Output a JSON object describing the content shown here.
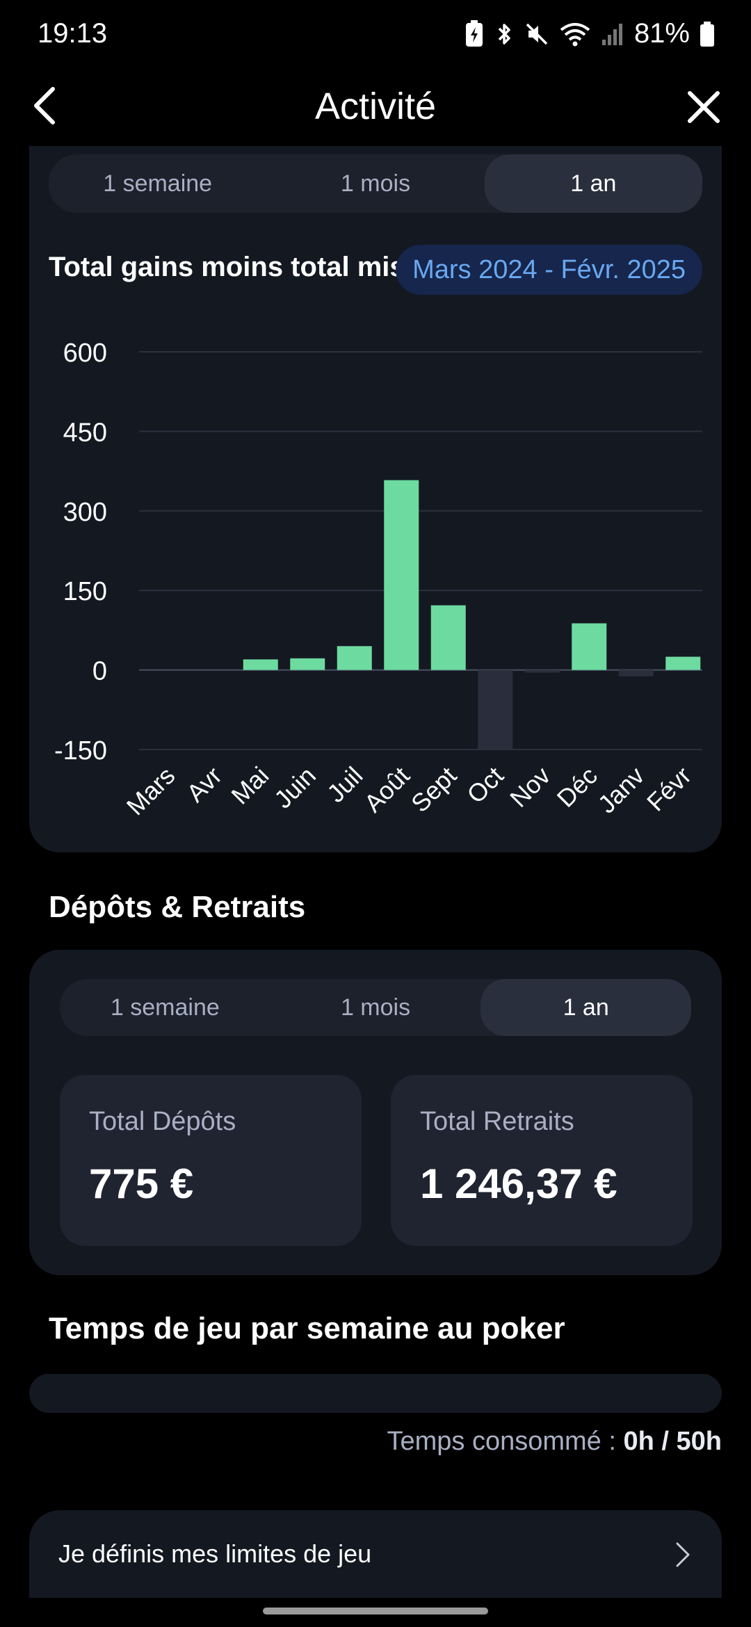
{
  "status_bar": {
    "time": "19:13",
    "battery": "81%"
  },
  "header": {
    "title": "Activité"
  },
  "chart_section": {
    "tabs": [
      "1 semaine",
      "1 mois",
      "1 an"
    ],
    "active_tab": 2,
    "title": "Total gains moins total mises",
    "period": "Mars 2024 - Févr. 2025"
  },
  "chart_data": {
    "type": "bar",
    "categories": [
      "Mars",
      "Avr",
      "Mai",
      "Juin",
      "Juil",
      "Août",
      "Sept",
      "Oct",
      "Nov",
      "Déc",
      "Janv",
      "Févr"
    ],
    "values": [
      0,
      0,
      20,
      22,
      45,
      358,
      122,
      -150,
      -5,
      88,
      -12,
      25
    ],
    "title": "Total gains moins total mises",
    "xlabel": "",
    "ylabel": "",
    "ylim": [
      -150,
      600
    ],
    "yticks": [
      600,
      450,
      300,
      150,
      0,
      -150
    ],
    "grid": true,
    "colors": {
      "positive": "#6ddba0",
      "negative": "#2a2e3c",
      "grid": "#2b303d",
      "axis": "#4a5064",
      "tick": "#ffffff"
    }
  },
  "deposits_section": {
    "title": "Dépôts & Retraits",
    "tabs": [
      "1 semaine",
      "1 mois",
      "1 an"
    ],
    "active_tab": 2,
    "total_deposits_label": "Total Dépôts",
    "total_deposits_value": "775 €",
    "total_withdrawals_label": "Total Retraits",
    "total_withdrawals_value": "1 246,37 €"
  },
  "play_time_section": {
    "title": "Temps de jeu par semaine au poker",
    "progress": 0,
    "used_label": "Temps consommé :",
    "used_value": "0h / 50h"
  },
  "limits": {
    "label": "Je définis mes limites de jeu"
  }
}
